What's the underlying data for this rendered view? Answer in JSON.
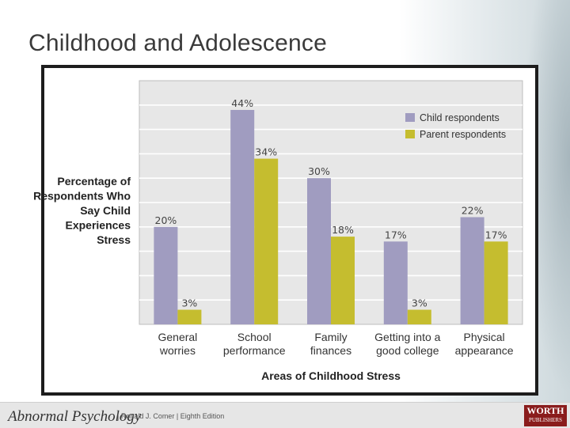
{
  "slide": {
    "title": "Childhood and Adolescence"
  },
  "chart_data": {
    "type": "bar",
    "title": "",
    "ylabel": "Percentage of Respondents Who Say Child Experiences Stress",
    "xlabel": "Areas of Childhood Stress",
    "ylim": [
      0,
      50
    ],
    "grid": true,
    "legend_position": "top-right",
    "categories": [
      [
        "General",
        "worries"
      ],
      [
        "School",
        "performance"
      ],
      [
        "Family",
        "finances"
      ],
      [
        "Getting into a",
        "good college"
      ],
      [
        "Physical",
        "appearance"
      ]
    ],
    "series": [
      {
        "name": "Child respondents",
        "color": "#a09cc0",
        "values": [
          20,
          44,
          30,
          17,
          22
        ],
        "labels": [
          "20%",
          "44%",
          "30%",
          "17%",
          "22%"
        ]
      },
      {
        "name": "Parent respondents",
        "color": "#c5bd2f",
        "values": [
          3,
          34,
          18,
          3,
          17
        ],
        "labels": [
          "3%",
          "34%",
          "18%",
          "3%",
          "17%"
        ]
      }
    ]
  },
  "footer": {
    "book_title": "Abnormal Psychology",
    "book_meta": "|  Ronald J. Comer  |  Eighth Edition",
    "publisher_line1": "WORTH",
    "publisher_line2": "PUBLISHERS"
  }
}
